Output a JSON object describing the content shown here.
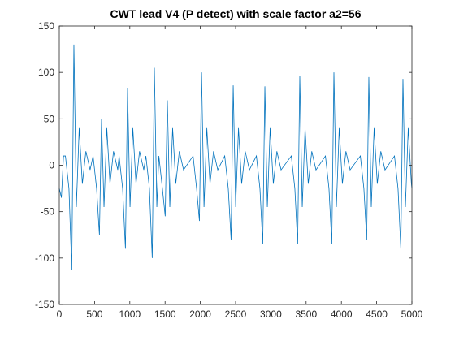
{
  "chart_data": {
    "type": "line",
    "title": "CWT lead V4 (P detect) with scale factor a2=56",
    "color": "#0072bd",
    "x": [
      0,
      30,
      60,
      87,
      137,
      177,
      207,
      242,
      282,
      327,
      377,
      437,
      479,
      529,
      569,
      599,
      634,
      674,
      719,
      769,
      829,
      848,
      898,
      938,
      968,
      1003,
      1043,
      1088,
      1138,
      1198,
      1228,
      1278,
      1318,
      1348,
      1383,
      1412,
      1462,
      1502,
      1532,
      1567,
      1607,
      1652,
      1702,
      1762,
      1897,
      1947,
      1987,
      2017,
      2052,
      2092,
      2137,
      2187,
      2247,
      2346,
      2396,
      2436,
      2466,
      2501,
      2541,
      2586,
      2636,
      2696,
      2795,
      2845,
      2885,
      2915,
      2950,
      2990,
      3035,
      3085,
      3145,
      3290,
      3340,
      3380,
      3410,
      3445,
      3485,
      3530,
      3580,
      3640,
      3774,
      3824,
      3864,
      3894,
      3929,
      3969,
      4014,
      4064,
      4124,
      4269,
      4319,
      4359,
      4389,
      4424,
      4464,
      4509,
      4559,
      4619,
      4753,
      4803,
      4843,
      4873,
      4908,
      4948,
      4993,
      5000
    ],
    "values": [
      -25,
      -35,
      10,
      10,
      -25,
      -113,
      130,
      -45,
      40,
      -20,
      15,
      -5,
      10,
      -25,
      -75,
      50,
      -45,
      40,
      -20,
      15,
      -5,
      10,
      -25,
      -90,
      83,
      -45,
      40,
      -20,
      15,
      -5,
      10,
      -25,
      -100,
      105,
      -45,
      10,
      -25,
      -55,
      70,
      -45,
      40,
      -20,
      15,
      -5,
      10,
      -25,
      -60,
      100,
      -45,
      40,
      -20,
      15,
      -5,
      10,
      -25,
      -80,
      86,
      -45,
      40,
      -20,
      15,
      -5,
      10,
      -25,
      -85,
      85,
      -45,
      40,
      -20,
      15,
      -5,
      10,
      -25,
      -85,
      96,
      -45,
      40,
      -20,
      15,
      -5,
      10,
      -25,
      -85,
      100,
      -45,
      40,
      -20,
      15,
      -5,
      10,
      -25,
      -80,
      95,
      -45,
      40,
      -20,
      15,
      -5,
      10,
      -25,
      -90,
      93,
      -45,
      40,
      -20,
      -25
    ],
    "xlim": [
      0,
      5000
    ],
    "xticks": [
      0,
      500,
      1000,
      1500,
      2000,
      2500,
      3000,
      3500,
      4000,
      4500,
      5000
    ],
    "ylim": [
      -150,
      150
    ],
    "yticks": [
      -150,
      -100,
      -50,
      0,
      50,
      100,
      150
    ]
  }
}
